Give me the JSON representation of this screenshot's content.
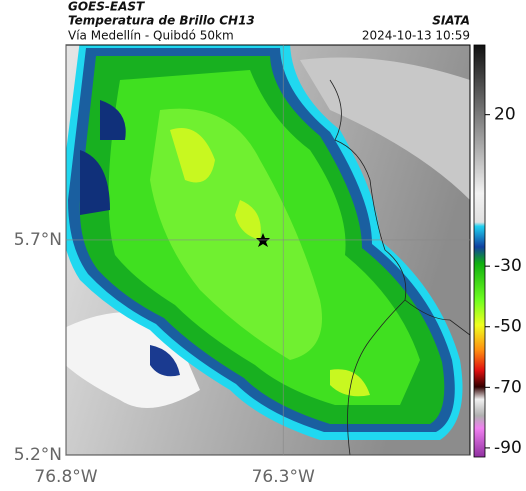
{
  "header": {
    "source": "GOES-EAST",
    "title": "Temperatura de Brillo CH13",
    "brand": "SIATA",
    "subtitle": "Vía Medellín - Quibdó 50km",
    "timestamp": "2024-10-13 10:59"
  },
  "map": {
    "latlim": [
      5.2,
      6.153
    ],
    "lonlim": [
      -76.8,
      -75.87
    ],
    "lat_ticks": [
      {
        "value": 5.7,
        "label": "5.7°N"
      },
      {
        "value": 5.2,
        "label": "5.2°N"
      }
    ],
    "lon_ticks": [
      {
        "value": -76.8,
        "label": "76.8°W"
      },
      {
        "value": -76.3,
        "label": "76.3°W"
      }
    ],
    "grid": true
  },
  "colorbar": {
    "lim": [
      -93,
      43
    ],
    "ticks": [
      20,
      -30,
      -50,
      -70,
      -90
    ]
  }
}
